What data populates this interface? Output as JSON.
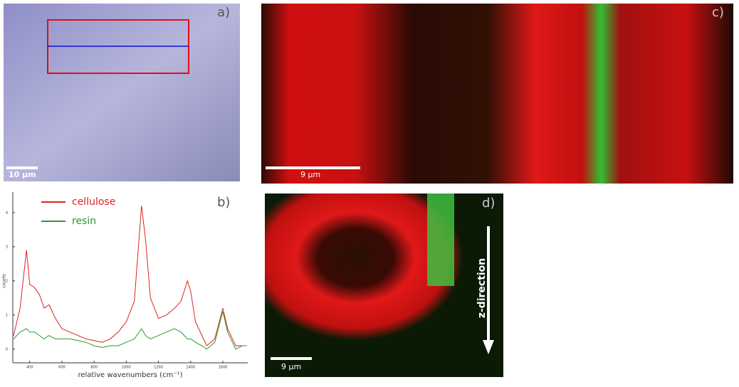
{
  "panels": {
    "a": {
      "label": "a)",
      "scale_bar": "10 µm"
    },
    "c": {
      "label": "c)",
      "scale_bar": "9 µm"
    },
    "d": {
      "label": "d)",
      "scale_bar": "9 µm",
      "arrow_label": "z-direction"
    }
  },
  "chart_data": {
    "type": "line",
    "panel_label": "b)",
    "x_label": "relative wavenumbers (cm⁻¹)",
    "y_label": "counts",
    "x": [
      300,
      340,
      380,
      400,
      430,
      460,
      490,
      520,
      560,
      600,
      650,
      700,
      750,
      800,
      850,
      900,
      950,
      1000,
      1050,
      1095,
      1120,
      1150,
      1200,
      1250,
      1300,
      1340,
      1380,
      1400,
      1430,
      1470,
      1500,
      1550,
      1600,
      1630,
      1680,
      1720,
      1750
    ],
    "series": [
      {
        "name": "cellulose",
        "color": "#e02020",
        "values": [
          0.4,
          1.2,
          2.9,
          1.9,
          1.8,
          1.6,
          1.2,
          1.3,
          0.9,
          0.6,
          0.5,
          0.4,
          0.3,
          0.25,
          0.2,
          0.3,
          0.5,
          0.8,
          1.4,
          4.2,
          3.2,
          1.5,
          0.9,
          1.0,
          1.2,
          1.4,
          2.0,
          1.7,
          0.8,
          0.4,
          0.1,
          0.3,
          1.2,
          0.6,
          0.1,
          0.1,
          0.1
        ]
      },
      {
        "name": "resin",
        "color": "#2a9a2a",
        "values": [
          0.3,
          0.5,
          0.6,
          0.5,
          0.5,
          0.4,
          0.3,
          0.4,
          0.3,
          0.3,
          0.3,
          0.25,
          0.2,
          0.1,
          0.05,
          0.1,
          0.1,
          0.2,
          0.3,
          0.6,
          0.4,
          0.3,
          0.4,
          0.5,
          0.6,
          0.5,
          0.3,
          0.3,
          0.2,
          0.1,
          0,
          0.2,
          1.1,
          0.5,
          0,
          0.1,
          0.1
        ]
      }
    ],
    "xlim": [
      295,
      1755
    ],
    "xticks": [
      400,
      600,
      800,
      1000,
      1200,
      1400,
      1600
    ],
    "ylim": [
      -0.4,
      4.6
    ],
    "yticks": [
      0,
      1,
      2,
      3,
      4
    ],
    "legend": "upper-left"
  }
}
